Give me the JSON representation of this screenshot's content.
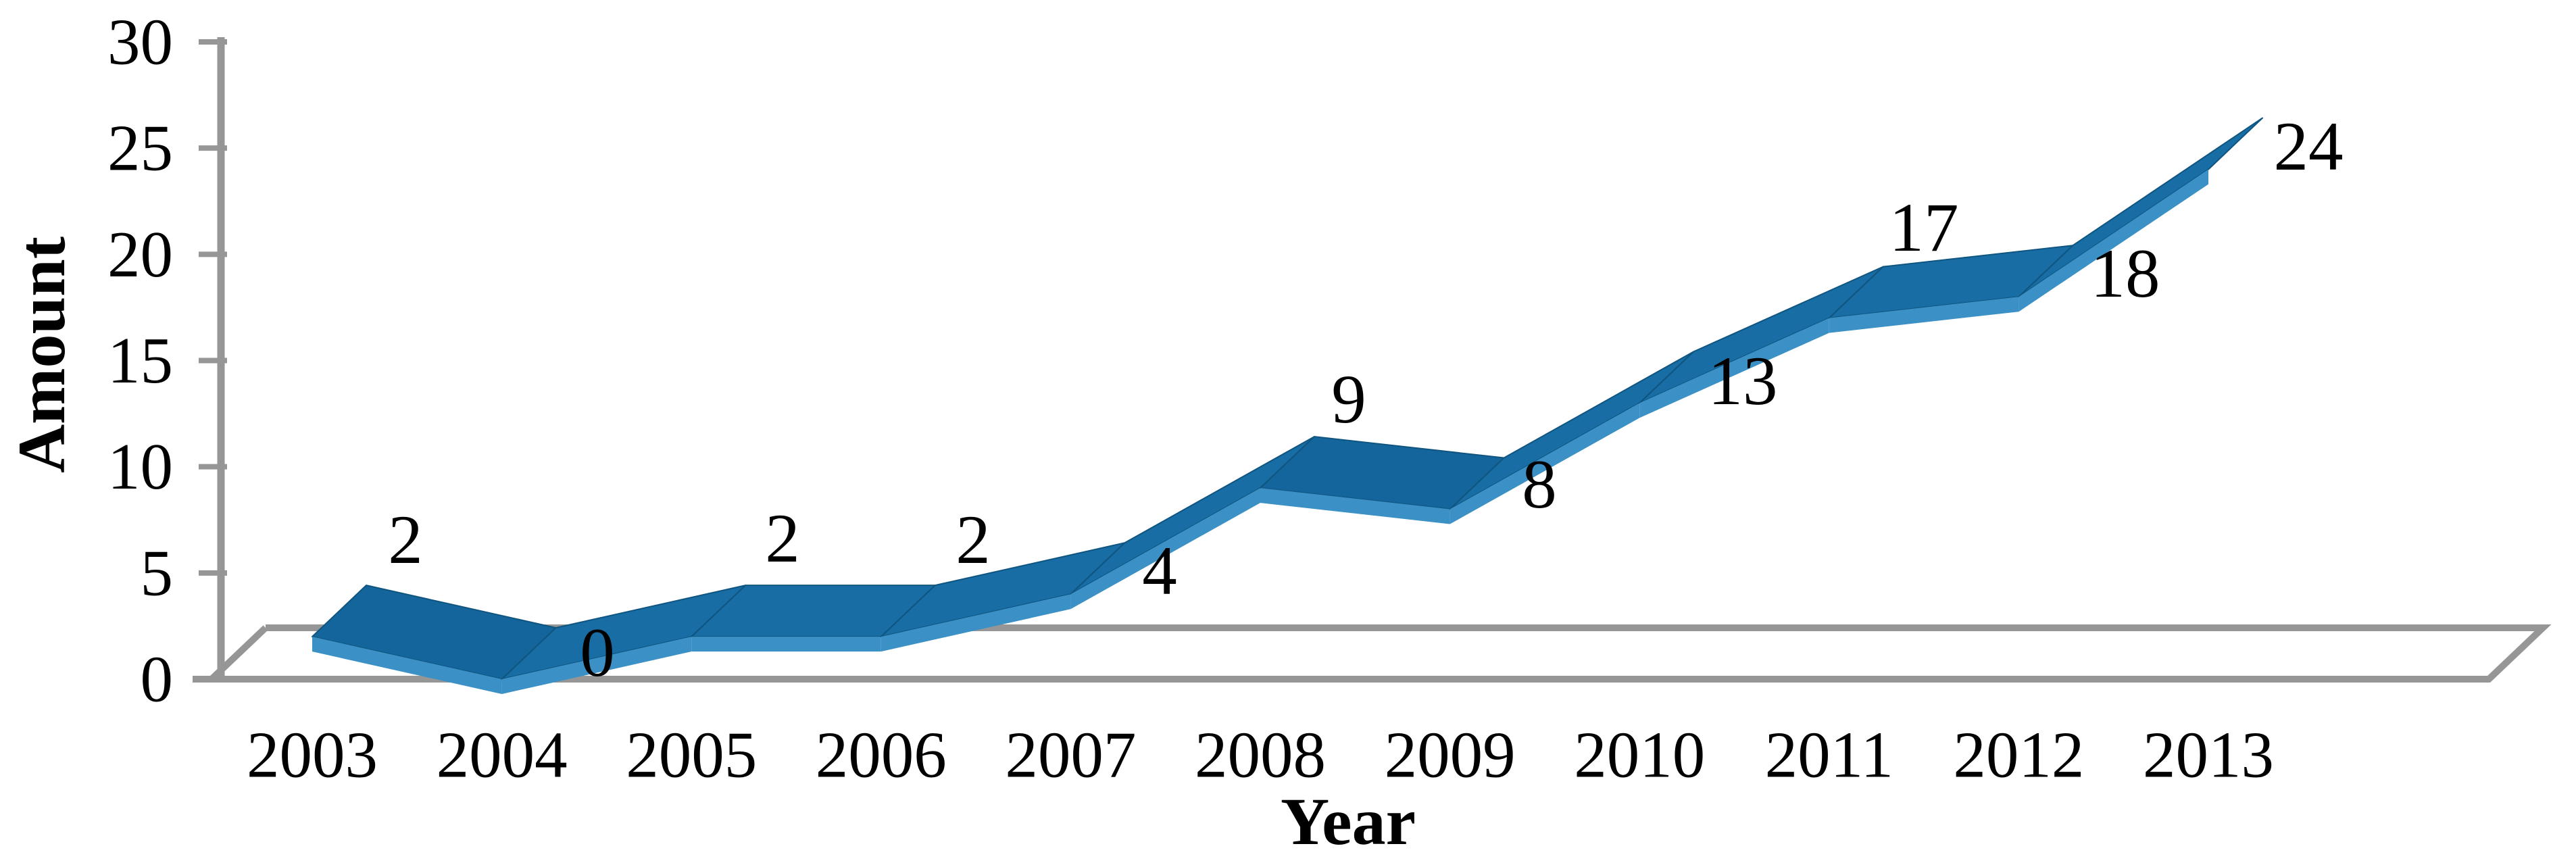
{
  "chart_data": {
    "type": "area",
    "subtype": "3d-ribbon-line",
    "title": "",
    "xlabel": "Year",
    "ylabel": "Amount",
    "categories": [
      "2003",
      "2004",
      "2005",
      "2006",
      "2007",
      "2008",
      "2009",
      "2010",
      "2011",
      "2012",
      "2013"
    ],
    "series": [
      {
        "name": "Amount",
        "values": [
          2,
          0,
          2,
          2,
          4,
          9,
          8,
          13,
          17,
          18,
          24
        ]
      }
    ],
    "data_labels": [
      "2",
      "0",
      "2",
      "2",
      "4",
      "9",
      "8",
      "13",
      "17",
      "18",
      "24"
    ],
    "y_ticks": [
      "0",
      "5",
      "10",
      "15",
      "20",
      "25",
      "30"
    ],
    "y_tick_values": [
      0,
      5,
      10,
      15,
      20,
      25,
      30
    ],
    "ylim": [
      0,
      30
    ],
    "grid": "off",
    "legend": "none",
    "colors": {
      "ribbon_top": "#176DA4",
      "ribbon_top_descending": "#14659B",
      "ribbon_edge": "#0F5580",
      "ribbon_front": "#3B90C5",
      "axis_gray": "#969696",
      "text": "#000000",
      "background": "#FFFFFF"
    }
  }
}
